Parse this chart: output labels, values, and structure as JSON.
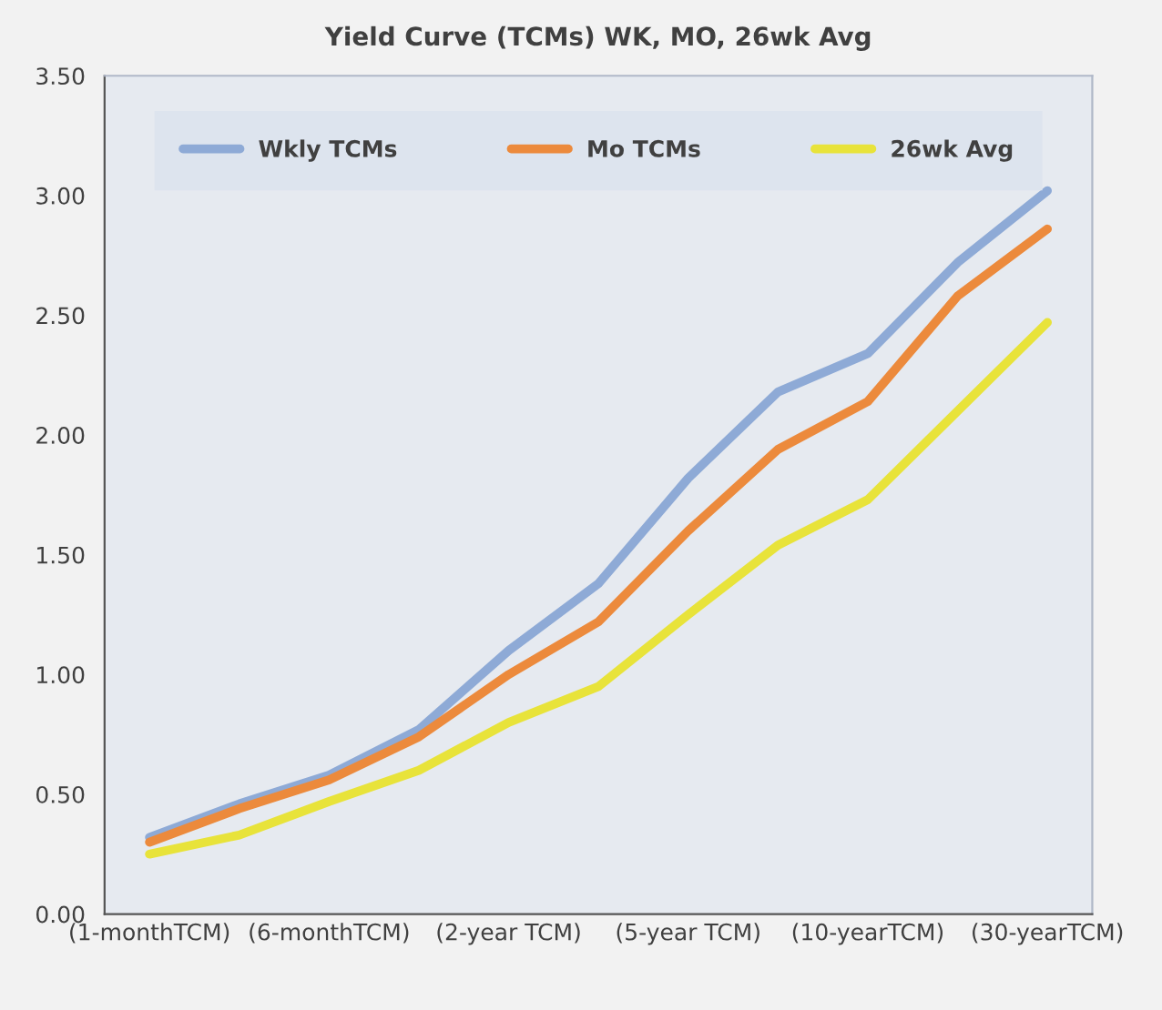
{
  "chart_data": {
    "type": "line",
    "title": "Yield Curve (TCMs) WK, MO, 26wk Avg",
    "categories": [
      "(1-monthTCM)",
      null,
      "(6-monthTCM)",
      null,
      "(2-year TCM)",
      null,
      "(5-year TCM)",
      null,
      "(10-yearTCM)",
      null,
      "(30-yearTCM)"
    ],
    "series": [
      {
        "name": "Wkly TCMs",
        "color": "#8eaad6",
        "values": [
          0.32,
          0.46,
          0.58,
          0.77,
          1.1,
          1.38,
          1.82,
          2.18,
          2.34,
          2.72,
          3.02
        ]
      },
      {
        "name": "Mo TCMs",
        "color": "#ec8a3c",
        "values": [
          0.3,
          0.44,
          0.56,
          0.74,
          1.0,
          1.22,
          1.6,
          1.94,
          2.14,
          2.58,
          2.86
        ]
      },
      {
        "name": "26wk Avg",
        "color": "#e8e33a",
        "values": [
          0.25,
          0.33,
          0.47,
          0.6,
          0.8,
          0.95,
          1.25,
          1.54,
          1.73,
          2.1,
          2.47
        ]
      }
    ],
    "ylim": [
      0,
      3.5
    ],
    "yticks": [
      {
        "value": 0,
        "label": "0.00"
      },
      {
        "value": 0.5,
        "label": "0.50"
      },
      {
        "value": 1,
        "label": "1.00"
      },
      {
        "value": 1.5,
        "label": "1.50"
      },
      {
        "value": 2,
        "label": "2.00"
      },
      {
        "value": 2.5,
        "label": "2.50"
      },
      {
        "value": 3,
        "label": "3.00"
      },
      {
        "value": 3.5,
        "label": "3.50"
      }
    ],
    "legend": "top",
    "grid": false,
    "marker": "none",
    "line_style": "solid"
  }
}
